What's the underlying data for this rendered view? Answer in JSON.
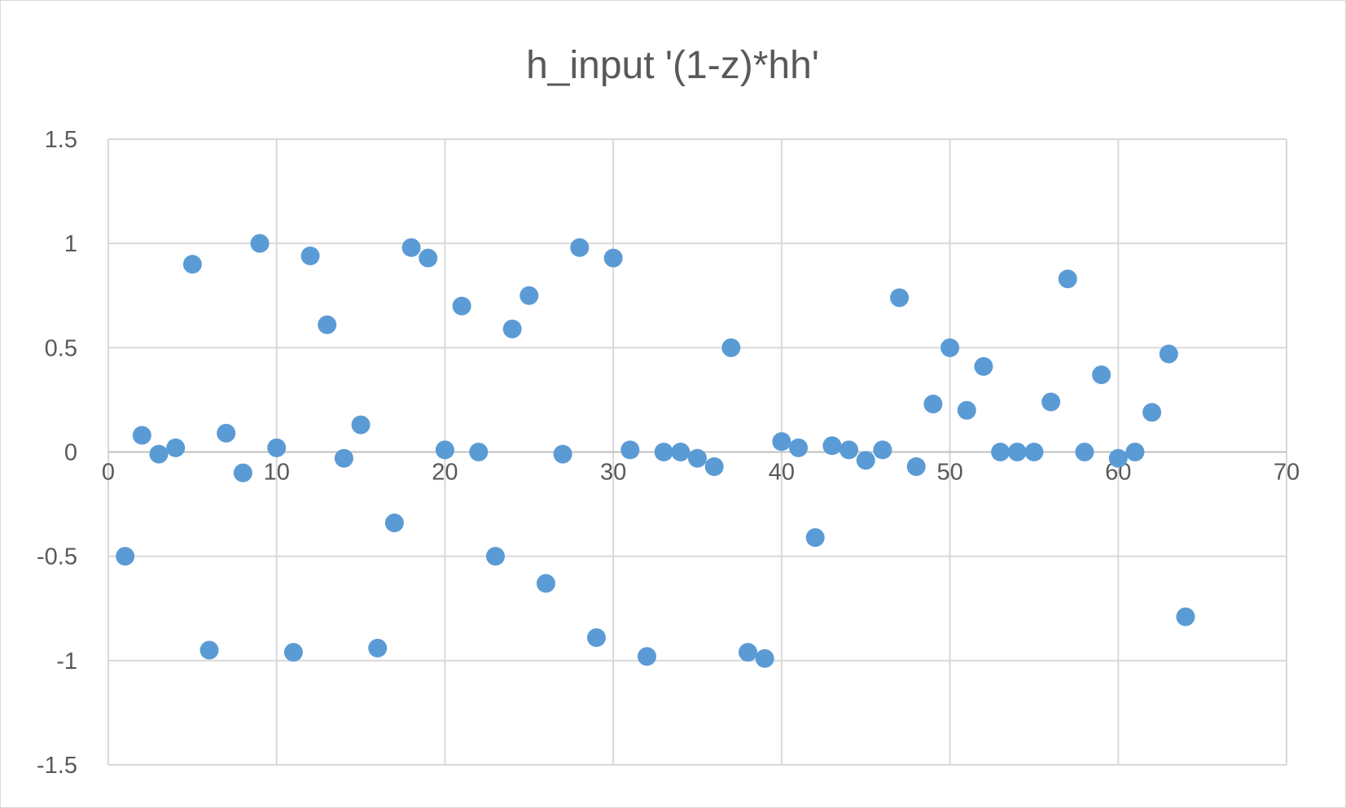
{
  "chart_data": {
    "type": "scatter",
    "title": "h_input '(1-z)*hh'",
    "xlabel": "",
    "ylabel": "",
    "xlim": [
      0,
      70
    ],
    "ylim": [
      -1.5,
      1.5
    ],
    "x_ticks": [
      0,
      10,
      20,
      30,
      40,
      50,
      60,
      70
    ],
    "y_ticks": [
      1.5,
      1,
      0.5,
      0,
      -0.5,
      -1,
      -1.5
    ],
    "x_tick_labels": [
      "0",
      "10",
      "20",
      "30",
      "40",
      "50",
      "60",
      "70"
    ],
    "y_tick_labels": [
      "1.5",
      "1",
      "0.5",
      "0",
      "-0.5",
      "-1",
      "-1.5"
    ],
    "grid": true,
    "legend": "none",
    "marker_color": "#5b9bd5",
    "series": [
      {
        "points": [
          {
            "x": 1,
            "y": -0.5
          },
          {
            "x": 2,
            "y": 0.08
          },
          {
            "x": 3,
            "y": -0.01
          },
          {
            "x": 4,
            "y": 0.02
          },
          {
            "x": 5,
            "y": 0.9
          },
          {
            "x": 6,
            "y": -0.95
          },
          {
            "x": 7,
            "y": 0.09
          },
          {
            "x": 8,
            "y": -0.1
          },
          {
            "x": 9,
            "y": 1.0
          },
          {
            "x": 10,
            "y": 0.02
          },
          {
            "x": 11,
            "y": -0.96
          },
          {
            "x": 12,
            "y": 0.94
          },
          {
            "x": 13,
            "y": 0.61
          },
          {
            "x": 14,
            "y": -0.03
          },
          {
            "x": 15,
            "y": 0.13
          },
          {
            "x": 16,
            "y": -0.94
          },
          {
            "x": 17,
            "y": -0.34
          },
          {
            "x": 18,
            "y": 0.98
          },
          {
            "x": 19,
            "y": 0.93
          },
          {
            "x": 20,
            "y": 0.01
          },
          {
            "x": 21,
            "y": 0.7
          },
          {
            "x": 22,
            "y": 0.0
          },
          {
            "x": 23,
            "y": -0.5
          },
          {
            "x": 24,
            "y": 0.59
          },
          {
            "x": 25,
            "y": 0.75
          },
          {
            "x": 26,
            "y": -0.63
          },
          {
            "x": 27,
            "y": -0.01
          },
          {
            "x": 28,
            "y": 0.98
          },
          {
            "x": 29,
            "y": -0.89
          },
          {
            "x": 30,
            "y": 0.93
          },
          {
            "x": 31,
            "y": 0.01
          },
          {
            "x": 32,
            "y": -0.98
          },
          {
            "x": 33,
            "y": 0.0
          },
          {
            "x": 34,
            "y": 0.0
          },
          {
            "x": 35,
            "y": -0.03
          },
          {
            "x": 36,
            "y": -0.07
          },
          {
            "x": 37,
            "y": 0.5
          },
          {
            "x": 38,
            "y": -0.96
          },
          {
            "x": 39,
            "y": -0.99
          },
          {
            "x": 40,
            "y": 0.05
          },
          {
            "x": 41,
            "y": 0.02
          },
          {
            "x": 42,
            "y": -0.41
          },
          {
            "x": 43,
            "y": 0.03
          },
          {
            "x": 44,
            "y": 0.01
          },
          {
            "x": 45,
            "y": -0.04
          },
          {
            "x": 46,
            "y": 0.01
          },
          {
            "x": 47,
            "y": 0.74
          },
          {
            "x": 48,
            "y": -0.07
          },
          {
            "x": 49,
            "y": 0.23
          },
          {
            "x": 50,
            "y": 0.5
          },
          {
            "x": 51,
            "y": 0.2
          },
          {
            "x": 52,
            "y": 0.41
          },
          {
            "x": 53,
            "y": 0.0
          },
          {
            "x": 54,
            "y": 0.0
          },
          {
            "x": 55,
            "y": 0.0
          },
          {
            "x": 56,
            "y": 0.24
          },
          {
            "x": 57,
            "y": 0.83
          },
          {
            "x": 58,
            "y": 0.0
          },
          {
            "x": 59,
            "y": 0.37
          },
          {
            "x": 60,
            "y": -0.03
          },
          {
            "x": 61,
            "y": 0.0
          },
          {
            "x": 62,
            "y": 0.19
          },
          {
            "x": 63,
            "y": 0.47
          },
          {
            "x": 64,
            "y": -0.79
          }
        ]
      }
    ]
  }
}
